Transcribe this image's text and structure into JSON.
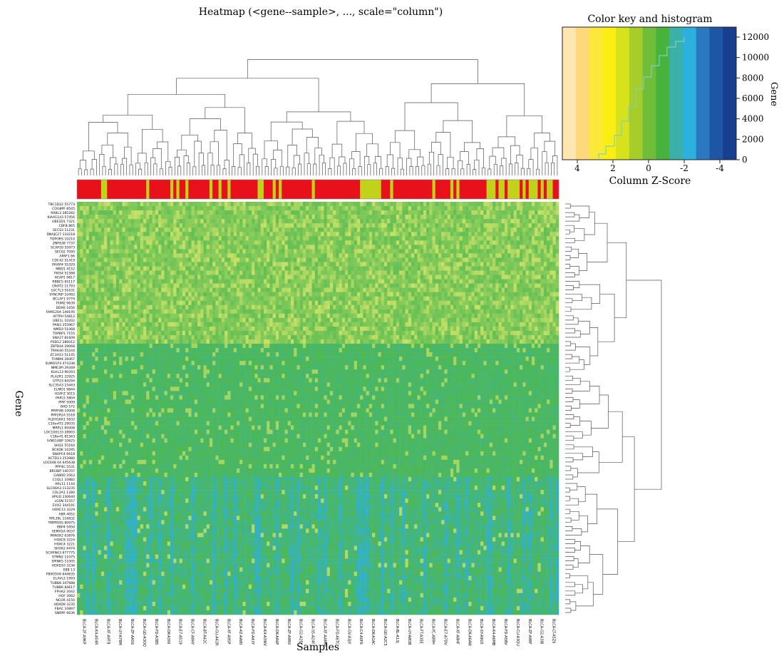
{
  "chart_data": {
    "type": "heatmap",
    "title": "Heatmap (<gene--sample>, ..., scale=\"column\")",
    "xlabel": "Samples",
    "ylabel": "Gene",
    "color_key": {
      "title": "Color key and histogram",
      "xlabel": "Column Z-Score",
      "ylabel": "Gene",
      "x_ticks": [
        "4",
        "2",
        "0",
        "-2",
        "-4"
      ],
      "y_ticks": [
        "0",
        "2000",
        "4000",
        "6000",
        "8000",
        "10000",
        "12000"
      ],
      "colors": [
        "#fde6b2",
        "#fdd97c",
        "#fce83a",
        "#faee13",
        "#d6e21b",
        "#a6cd2a",
        "#6fbd39",
        "#47b23c",
        "#3bb0a8",
        "#2cb0de",
        "#2a78c0",
        "#1d56a5",
        "#183f8f"
      ]
    },
    "heatmap_colors": {
      "low": "#2cb0de",
      "mid": "#4fb850",
      "high": "#dde86a"
    },
    "sample_annotation_colors": [
      "#e8101b",
      "#c2d21a"
    ],
    "genes": [
      "TBC1D22 55773",
      "COG8PF 8545",
      "RABL3 285282",
      "KIAA1143 57456",
      "UBE2D1 7321",
      "CBFB 865",
      "SECS3 11231",
      "DNAJC27 134218",
      "TOPORS 10210",
      "ZNF638 7737",
      "SCAP20 55973",
      "SEC62 7095",
      "APAF1 66",
      "CDC42 51419",
      "PAXIP4 55329",
      "MBD1 4152",
      "PIAS4 51588",
      "KEAP1 9817",
      "RBBC5 65117",
      "CNOT2 11793",
      "LUC7L3 51631",
      "SYNCRIP 10492",
      "BCLAF1 9774",
      "PUM2 9639",
      "DDX6 1656",
      "FAM120A 149195",
      "AFTPH 54812",
      "UBE1L 10202",
      "PAN3 255967",
      "NMD3 51068",
      "TOPBP1 7155",
      "SNX27 81609",
      "PSD12 286012",
      "ZBTB44 29068",
      "TRAK40 55244",
      "ZC3H12 51145",
      "THNM4 26067",
      "SUMO1P3 474338",
      "NME3PI 29349",
      "KLHL13 90293",
      "PLA2R1 22925",
      "UTP23 84294",
      "SLC35A3 23443",
      "ELMO1 9844",
      "H2AFZ 3015",
      "PAPL5 5804",
      "PPIF 5009",
      "BAD 572",
      "PRPF4B 10008",
      "PPP2R2A 5518",
      "ALDH18A1 5832",
      "C16orf72 29035",
      "MRPL1 65008",
      "LOC100133 28903",
      "C18orf1 81563",
      "IVNS1ABP 10625",
      "SHQ1 55164",
      "BCKDK 10295",
      "SNAPC4 6618",
      "KCTD13 253980",
      "LOC648 04 645638",
      "PPP4C 5531",
      "BRI3BP 140707",
      "GABRD 2563",
      "C1QL1 10882",
      "ARL11 1144",
      "SLC66A3 113235",
      "COL2A1 1280",
      "HPGD 230640",
      "LGSN 51557",
      "EVX2 344191",
      "HOXC13 3229",
      "ABR 4052",
      "RPL39L 116832",
      "TMPRSS5 80975",
      "RBP4 5950",
      "SEMA5A 9037",
      "PKNOX2 63876",
      "HOXC8 3224",
      "HOXC4 3221",
      "SHOX2 6474",
      "SCARNA3 677775",
      "STMN2 11075",
      "SPINK5 11005",
      "HOXD10 3236",
      "EBB 13",
      "FBXO5V6 644635",
      "ELAVL2 1993",
      "TUBB8 347688",
      "TUBB6 84617",
      "FPHA2 2042",
      "HGF 3082",
      "NCOR 4150",
      "HOXD9 3235",
      "FBAC 10897",
      "SNRPF 6636"
    ],
    "sample_labels": [
      "BLCA-2F-A9KP",
      "BLCA-K4-A54R",
      "BLCA-XF-A9T8",
      "BLCA-UY-A78M",
      "BLCA-ZF-AA56",
      "BLCA-GD-A3OQ",
      "BLCA-FD-A3B5",
      "BLCA-DK-A3IN",
      "BLCA-E7-A519",
      "BLCA-CF-A8HY",
      "BLCA-BT-A42C",
      "BLCA-GU-A42R",
      "BLCA-XF-A9SP",
      "BLCA-4Z-AA80",
      "BLCA-FD-A43Y",
      "BLCA-K4-A3WV",
      "BLCA-DK-AA6P",
      "BLCA-ZF-A9R0",
      "BLCA-G2-A2EJ",
      "BLCA-S5-A24F",
      "BLCA-XF-AAMW",
      "BLCA-FD-A6TC",
      "BLCA-GV-A3JX",
      "BLCA-C4-A0F6",
      "BLCA-DK-A1AC",
      "BLCA-GD-A2C5",
      "BLCA-BL-A13J",
      "BLCA-UY-A8OB",
      "BLCA-FT-A3EE",
      "BLCA-YC-A89H",
      "BLCA-E7-A7DV",
      "BLCA-XF-A8HF",
      "BLCA-DK-A6AW",
      "BLCA-SY-A9G5",
      "BLCA-K4-A6MB",
      "BLCA-FD-A5BV",
      "BLCA-CU-A3QU",
      "BLCA-ZF-A9RF",
      "BLCA-G2-A3IB",
      "BLCA-LT-A5Z6"
    ]
  }
}
